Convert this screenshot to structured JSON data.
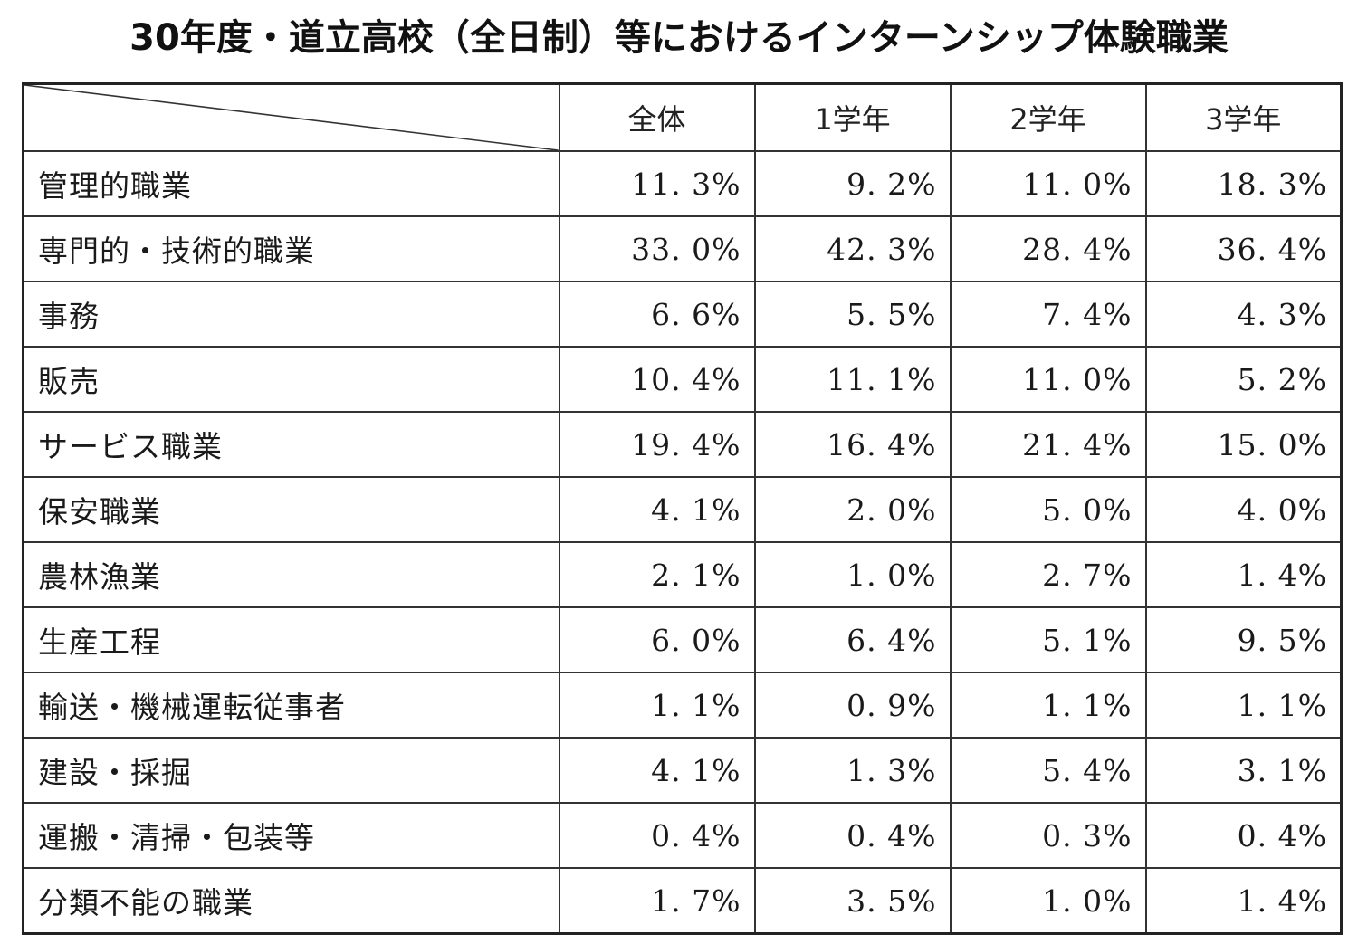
{
  "title": "30年度・道立高校（全日制）等におけるインターンシップ体験職業",
  "columns": [
    "全体",
    "1学年",
    "2学年",
    "3学年"
  ],
  "rows": [
    {
      "label": "管理的職業",
      "values": [
        "11. 3%",
        "9. 2%",
        "11. 0%",
        "18. 3%"
      ]
    },
    {
      "label": "専門的・技術的職業",
      "values": [
        "33. 0%",
        "42. 3%",
        "28. 4%",
        "36. 4%"
      ]
    },
    {
      "label": "事務",
      "values": [
        "6. 6%",
        "5. 5%",
        "7. 4%",
        "4. 3%"
      ]
    },
    {
      "label": "販売",
      "values": [
        "10. 4%",
        "11. 1%",
        "11. 0%",
        "5. 2%"
      ]
    },
    {
      "label": "サービス職業",
      "values": [
        "19. 4%",
        "16. 4%",
        "21. 4%",
        "15. 0%"
      ]
    },
    {
      "label": "保安職業",
      "values": [
        "4. 1%",
        "2. 0%",
        "5. 0%",
        "4. 0%"
      ]
    },
    {
      "label": "農林漁業",
      "values": [
        "2. 1%",
        "1. 0%",
        "2. 7%",
        "1. 4%"
      ]
    },
    {
      "label": "生産工程",
      "values": [
        "6. 0%",
        "6. 4%",
        "5. 1%",
        "9. 5%"
      ]
    },
    {
      "label": "輸送・機械運転従事者",
      "values": [
        "1. 1%",
        "0. 9%",
        "1. 1%",
        "1. 1%"
      ]
    },
    {
      "label": "建設・採掘",
      "values": [
        "4. 1%",
        "1. 3%",
        "5. 4%",
        "3. 1%"
      ]
    },
    {
      "label": "運搬・清掃・包装等",
      "values": [
        "0. 4%",
        "0. 4%",
        "0. 3%",
        "0. 4%"
      ]
    },
    {
      "label": "分類不能の職業",
      "values": [
        "1. 7%",
        "3. 5%",
        "1. 0%",
        "1. 4%"
      ]
    }
  ]
}
